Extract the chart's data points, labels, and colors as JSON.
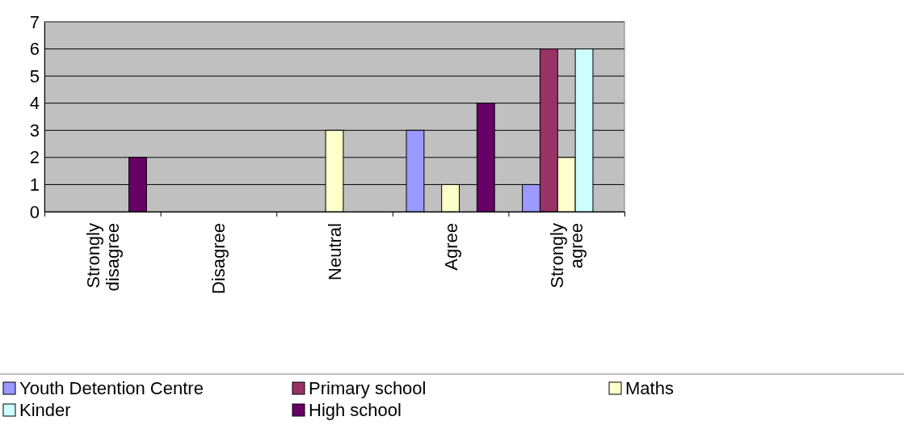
{
  "chart_data": {
    "type": "bar",
    "categories": [
      "Strongly disagree",
      "Disagree",
      "Neutral",
      "Agree",
      "Strongly agree"
    ],
    "series": [
      {
        "name": "Youth Detention Centre",
        "color": "#9999ff",
        "values": [
          0,
          0,
          0,
          3,
          1
        ]
      },
      {
        "name": "Primary school",
        "color": "#993366",
        "values": [
          0,
          0,
          0,
          0,
          6
        ]
      },
      {
        "name": "Maths",
        "color": "#ffffcc",
        "values": [
          0,
          0,
          3,
          1,
          2
        ]
      },
      {
        "name": "Kinder",
        "color": "#ccffff",
        "values": [
          0,
          0,
          0,
          0,
          6
        ]
      },
      {
        "name": "High school",
        "color": "#660066",
        "values": [
          2,
          0,
          0,
          4,
          0
        ]
      }
    ],
    "ylim": [
      0,
      7
    ],
    "yticks": [
      0,
      1,
      2,
      3,
      4,
      5,
      6,
      7
    ],
    "grid": "y",
    "legend": "bottom"
  }
}
